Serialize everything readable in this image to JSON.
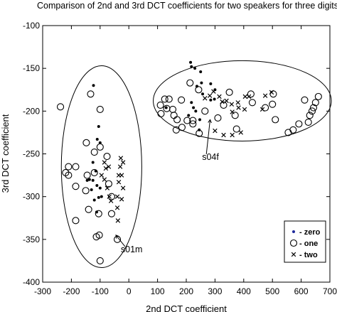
{
  "chart_data": {
    "type": "scatter",
    "title": "Comparison of 2nd and 3rd DCT coefficients for two speakers for three digits",
    "xlabel": "2nd DCT coefficient",
    "ylabel": "3rd DCT coefficient",
    "xlim": [
      -300,
      700
    ],
    "ylim": [
      -400,
      -100
    ],
    "xticks": [
      -300,
      -200,
      -100,
      0,
      100,
      200,
      300,
      400,
      500,
      600,
      700
    ],
    "yticks": [
      -100,
      -150,
      -200,
      -250,
      -300,
      -350,
      -400
    ],
    "grid": false,
    "legend_position": "bottom-right",
    "legend": [
      {
        "marker": "dot",
        "label": "- zero",
        "color": "#1f2a9c"
      },
      {
        "marker": "circle",
        "label": "- one",
        "color": "#000000"
      },
      {
        "marker": "cross",
        "label": "- two",
        "color": "#000000"
      }
    ],
    "annotations": [
      {
        "text": "s04f",
        "x": 283,
        "y": -210,
        "text_x": 255,
        "text_y": -257
      },
      {
        "text": "s01m",
        "x": -45,
        "y": -345,
        "text_x": -28,
        "text_y": -365
      }
    ],
    "series": [
      {
        "marker": "dot",
        "points": [
          [
            -123,
            -170
          ],
          [
            -105,
            -218
          ],
          [
            -110,
            -233
          ],
          [
            -100,
            -237
          ],
          [
            -125,
            -260
          ],
          [
            -115,
            -270
          ],
          [
            -125,
            -281
          ],
          [
            -111,
            -287
          ],
          [
            -100,
            -290
          ],
          [
            -137,
            -280
          ],
          [
            -145,
            -281
          ],
          [
            -130,
            -292
          ],
          [
            -95,
            -300
          ],
          [
            -120,
            -304
          ],
          [
            -105,
            -301
          ],
          [
            -112,
            -318
          ],
          [
            215,
            -143
          ],
          [
            218,
            -148
          ],
          [
            230,
            -150
          ],
          [
            250,
            -154
          ],
          [
            253,
            -167
          ],
          [
            237,
            -171
          ],
          [
            257,
            -180
          ],
          [
            218,
            -190
          ],
          [
            225,
            -196
          ],
          [
            233,
            -200
          ],
          [
            208,
            -205
          ],
          [
            247,
            -210
          ],
          [
            245,
            -222
          ],
          [
            130,
            -196
          ],
          [
            285,
            -168
          ],
          [
            300,
            -175
          ],
          [
            298,
            -186
          ],
          [
            285,
            -187
          ]
        ]
      },
      {
        "marker": "circle",
        "points": [
          [
            -238,
            -195
          ],
          [
            -133,
            -180
          ],
          [
            -100,
            -198
          ],
          [
            -148,
            -237
          ],
          [
            -100,
            -242
          ],
          [
            -120,
            -248
          ],
          [
            -76,
            -253
          ],
          [
            -210,
            -265
          ],
          [
            -220,
            -272
          ],
          [
            -185,
            -265
          ],
          [
            -210,
            -275
          ],
          [
            -120,
            -272
          ],
          [
            -145,
            -275
          ],
          [
            -70,
            -285
          ],
          [
            -185,
            -288
          ],
          [
            -150,
            -293
          ],
          [
            -60,
            -300
          ],
          [
            -140,
            -315
          ],
          [
            -105,
            -320
          ],
          [
            -60,
            -320
          ],
          [
            -185,
            -328
          ],
          [
            -113,
            -347
          ],
          [
            -103,
            -345
          ],
          [
            -40,
            -350
          ],
          [
            -100,
            -375
          ],
          [
            213,
            -167
          ],
          [
            243,
            -175
          ],
          [
            125,
            -186
          ],
          [
            140,
            -186
          ],
          [
            183,
            -187
          ],
          [
            110,
            -193
          ],
          [
            132,
            -197
          ],
          [
            153,
            -198
          ],
          [
            157,
            -205
          ],
          [
            203,
            -211
          ],
          [
            223,
            -211
          ],
          [
            112,
            -203
          ],
          [
            168,
            -210
          ],
          [
            223,
            -215
          ],
          [
            185,
            -219
          ],
          [
            165,
            -222
          ],
          [
            245,
            -226
          ],
          [
            265,
            -200
          ],
          [
            310,
            -208
          ],
          [
            330,
            -193
          ],
          [
            350,
            -178
          ],
          [
            370,
            -205
          ],
          [
            375,
            -221
          ],
          [
            430,
            -190
          ],
          [
            475,
            -196
          ],
          [
            503,
            -180
          ],
          [
            500,
            -192
          ],
          [
            510,
            -210
          ],
          [
            592,
            -215
          ],
          [
            612,
            -187
          ],
          [
            625,
            -213
          ],
          [
            630,
            -205
          ],
          [
            638,
            -200
          ],
          [
            643,
            -196
          ],
          [
            650,
            -190
          ],
          [
            660,
            -183
          ],
          [
            555,
            -225
          ],
          [
            572,
            -222
          ],
          [
            425,
            -180
          ]
        ]
      },
      {
        "marker": "cross",
        "points": [
          [
            -95,
            -275
          ],
          [
            -85,
            -280
          ],
          [
            -75,
            -290
          ],
          [
            -68,
            -300
          ],
          [
            -62,
            -305
          ],
          [
            -80,
            -267
          ],
          [
            -85,
            -260
          ],
          [
            -70,
            -265
          ],
          [
            -35,
            -275
          ],
          [
            -30,
            -265
          ],
          [
            -25,
            -275
          ],
          [
            -35,
            -283
          ],
          [
            -20,
            -290
          ],
          [
            -40,
            -300
          ],
          [
            -25,
            -303
          ],
          [
            -40,
            -313
          ],
          [
            -38,
            -328
          ],
          [
            -20,
            -260
          ],
          [
            -28,
            -255
          ],
          [
            265,
            -185
          ],
          [
            282,
            -182
          ],
          [
            295,
            -177
          ],
          [
            315,
            -183
          ],
          [
            325,
            -189
          ],
          [
            340,
            -188
          ],
          [
            358,
            -192
          ],
          [
            360,
            -201
          ],
          [
            380,
            -190
          ],
          [
            405,
            -183
          ],
          [
            418,
            -183
          ],
          [
            475,
            -182
          ],
          [
            497,
            -178
          ],
          [
            382,
            -196
          ],
          [
            300,
            -223
          ],
          [
            330,
            -228
          ],
          [
            360,
            -228
          ],
          [
            390,
            -225
          ],
          [
            403,
            -198
          ],
          [
            465,
            -198
          ]
        ]
      }
    ],
    "ellipses": [
      {
        "cx": -95,
        "cy": -265,
        "rx": 140,
        "ry": 118
      },
      {
        "cx": 395,
        "cy": -188,
        "rx": 310,
        "ry": 47
      }
    ]
  }
}
